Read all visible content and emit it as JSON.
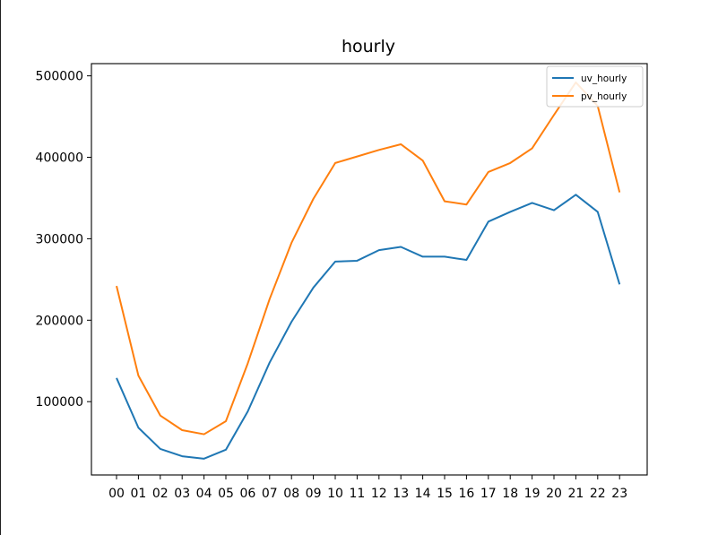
{
  "chart_data": {
    "type": "line",
    "title": "hourly",
    "xlabel": "",
    "ylabel": "",
    "categories": [
      "00",
      "01",
      "02",
      "03",
      "04",
      "05",
      "06",
      "07",
      "08",
      "09",
      "10",
      "11",
      "12",
      "13",
      "14",
      "15",
      "16",
      "17",
      "18",
      "19",
      "20",
      "21",
      "22",
      "23"
    ],
    "ylim": [
      10000,
      515000
    ],
    "yticks": [
      100000,
      200000,
      300000,
      400000,
      500000
    ],
    "grid": false,
    "legend_position": "upper-right",
    "series": [
      {
        "name": "uv_hourly",
        "color": "#1f77b4",
        "values": [
          129000,
          68000,
          42000,
          33000,
          30000,
          41000,
          88000,
          148000,
          198000,
          240000,
          272000,
          273000,
          286000,
          290000,
          278000,
          278000,
          274000,
          321000,
          333000,
          344000,
          335000,
          354000,
          333000,
          244000
        ]
      },
      {
        "name": "pv_hourly",
        "color": "#ff7f0e",
        "values": [
          242000,
          132000,
          83000,
          65000,
          60000,
          76000,
          147000,
          226000,
          295000,
          349000,
          393000,
          401000,
          409000,
          416000,
          396000,
          346000,
          342000,
          382000,
          393000,
          411000,
          452000,
          492000,
          463000,
          357000
        ]
      }
    ]
  }
}
